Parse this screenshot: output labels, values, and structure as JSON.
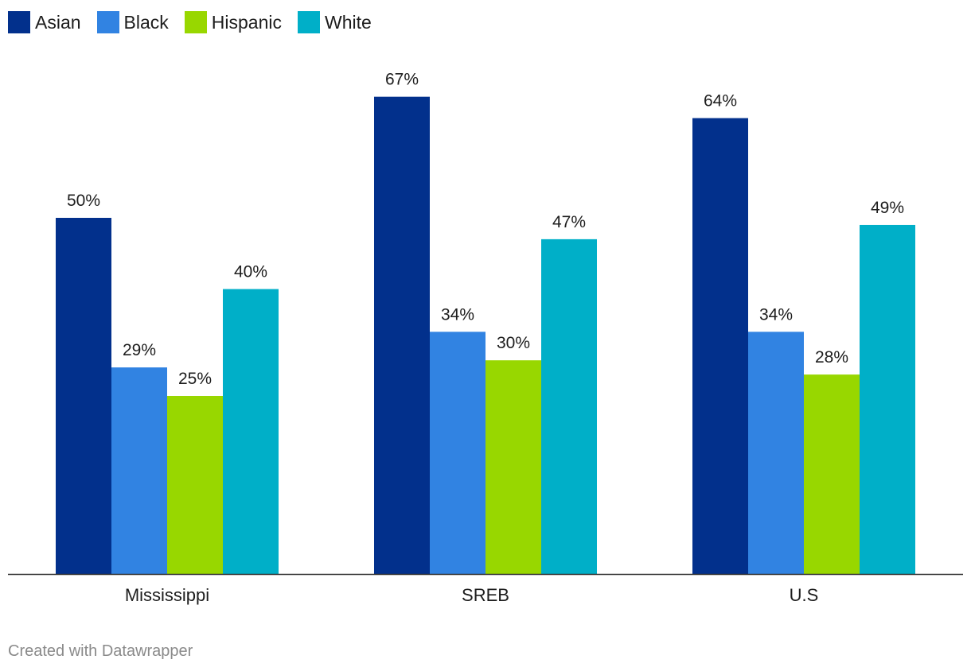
{
  "chart_data": {
    "type": "bar",
    "categories": [
      "Mississippi",
      "SREB",
      "U.S"
    ],
    "series": [
      {
        "name": "Asian",
        "color": "#02308c",
        "values": [
          50,
          67,
          64
        ],
        "labels": [
          "50%",
          "67%",
          "64%"
        ]
      },
      {
        "name": "Black",
        "color": "#3183e2",
        "values": [
          29,
          34,
          34
        ],
        "labels": [
          "29%",
          "34%",
          "34%"
        ]
      },
      {
        "name": "Hispanic",
        "color": "#98d700",
        "values": [
          25,
          30,
          28
        ],
        "labels": [
          "25%",
          "30%",
          "28%"
        ]
      },
      {
        "name": "White",
        "color": "#00afc8",
        "values": [
          40,
          47,
          49
        ],
        "labels": [
          "40%",
          "47%",
          "49%"
        ]
      }
    ],
    "ylim": [
      0,
      100
    ],
    "legend": "top-left",
    "grid": false
  },
  "footer": {
    "credit": "Created with Datawrapper"
  }
}
